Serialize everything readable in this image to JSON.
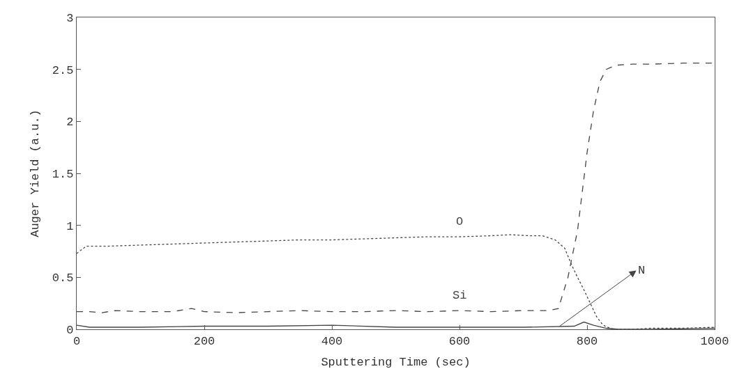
{
  "chart_data": {
    "type": "line",
    "xlabel": "Sputtering Time (sec)",
    "ylabel": "Auger Yield (a.u.)",
    "xlim": [
      0,
      1000
    ],
    "xticks": [
      0,
      200,
      400,
      600,
      800,
      1000
    ],
    "ylim": [
      0,
      3
    ],
    "yticks": [
      0,
      0.5,
      1,
      1.5,
      2,
      2.5,
      3
    ],
    "grid": false,
    "legend": false,
    "marker": "none",
    "series": [
      {
        "name": "O",
        "color": "#444444",
        "line_style": "dotted",
        "x": [
          0,
          15,
          50,
          100,
          150,
          200,
          250,
          300,
          350,
          400,
          450,
          500,
          550,
          600,
          650,
          680,
          710,
          730,
          750,
          765,
          775,
          785,
          795,
          805,
          815,
          825,
          840,
          870,
          900,
          950,
          1000
        ],
        "values": [
          0.73,
          0.8,
          0.8,
          0.81,
          0.82,
          0.83,
          0.84,
          0.85,
          0.86,
          0.86,
          0.87,
          0.88,
          0.89,
          0.89,
          0.9,
          0.91,
          0.9,
          0.9,
          0.86,
          0.78,
          0.63,
          0.5,
          0.38,
          0.25,
          0.12,
          0.04,
          0.0,
          0.0,
          0.01,
          0.01,
          0.02
        ]
      },
      {
        "name": "Si",
        "color": "#444444",
        "line_style": "dashed",
        "x": [
          0,
          20,
          40,
          60,
          100,
          150,
          180,
          200,
          250,
          300,
          350,
          400,
          450,
          500,
          550,
          600,
          650,
          700,
          740,
          755,
          770,
          785,
          800,
          810,
          820,
          830,
          845,
          870,
          900,
          950,
          1000
        ],
        "values": [
          0.17,
          0.17,
          0.16,
          0.18,
          0.17,
          0.17,
          0.2,
          0.17,
          0.16,
          0.17,
          0.18,
          0.17,
          0.17,
          0.18,
          0.17,
          0.18,
          0.17,
          0.18,
          0.18,
          0.2,
          0.5,
          0.95,
          1.7,
          2.1,
          2.38,
          2.5,
          2.54,
          2.55,
          2.55,
          2.56,
          2.56
        ]
      },
      {
        "color": "#444444",
        "line_style": "solid",
        "x": [
          0,
          20,
          100,
          200,
          300,
          400,
          500,
          600,
          700,
          780,
          795,
          810,
          830,
          850,
          900,
          1000
        ],
        "values": [
          0.04,
          0.02,
          0.02,
          0.03,
          0.03,
          0.04,
          0.02,
          0.02,
          0.02,
          0.03,
          0.07,
          0.04,
          0.01,
          0.0,
          0.0,
          0.01
        ]
      }
    ],
    "annotations": [
      {
        "text": "N",
        "x": 757,
        "y": 0.03
      }
    ]
  }
}
